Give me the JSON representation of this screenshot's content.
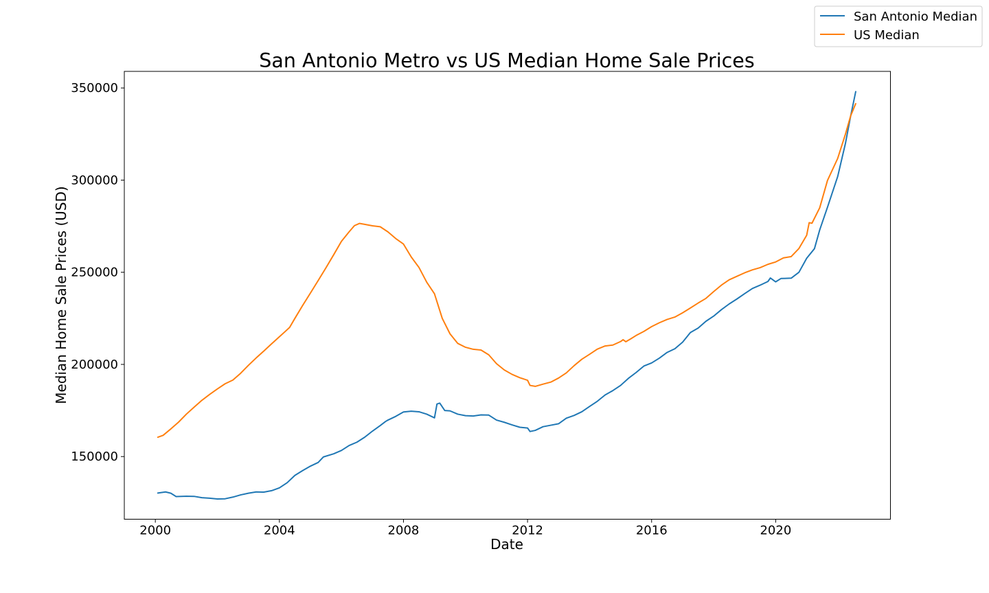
{
  "chart_data": {
    "type": "line",
    "title": "San Antonio Metro vs US Median Home Sale Prices",
    "xlabel": "Date",
    "ylabel": "Median Home Sale Prices (USD)",
    "xlim": [
      1999.0,
      2023.7
    ],
    "ylim": [
      116000,
      359000
    ],
    "xticks": [
      {
        "value": 2000,
        "label": "2000"
      },
      {
        "value": 2004,
        "label": "2004"
      },
      {
        "value": 2008,
        "label": "2008"
      },
      {
        "value": 2012,
        "label": "2012"
      },
      {
        "value": 2016,
        "label": "2016"
      },
      {
        "value": 2020,
        "label": "2020"
      }
    ],
    "yticks": [
      {
        "value": 150000,
        "label": "150000"
      },
      {
        "value": 200000,
        "label": "200000"
      },
      {
        "value": 250000,
        "label": "250000"
      },
      {
        "value": 300000,
        "label": "300000"
      },
      {
        "value": 350000,
        "label": "350000"
      }
    ],
    "legend_position": "top-right (outside plot)",
    "grid": false,
    "series": [
      {
        "name": "San Antonio Median",
        "color": "#1f77b4",
        "points": [
          [
            2000.08,
            130200
          ],
          [
            2000.33,
            130800
          ],
          [
            2000.5,
            130100
          ],
          [
            2000.67,
            128300
          ],
          [
            2001.0,
            128500
          ],
          [
            2001.25,
            128400
          ],
          [
            2001.5,
            127700
          ],
          [
            2001.75,
            127400
          ],
          [
            2002.0,
            127000
          ],
          [
            2002.25,
            127100
          ],
          [
            2002.5,
            128000
          ],
          [
            2002.75,
            129200
          ],
          [
            2003.0,
            130100
          ],
          [
            2003.25,
            130800
          ],
          [
            2003.5,
            130700
          ],
          [
            2003.75,
            131500
          ],
          [
            2004.0,
            133000
          ],
          [
            2004.25,
            135800
          ],
          [
            2004.5,
            139800
          ],
          [
            2004.75,
            142400
          ],
          [
            2005.0,
            144800
          ],
          [
            2005.25,
            146800
          ],
          [
            2005.42,
            149800
          ],
          [
            2005.75,
            151500
          ],
          [
            2006.0,
            153300
          ],
          [
            2006.25,
            156000
          ],
          [
            2006.5,
            157800
          ],
          [
            2006.75,
            160500
          ],
          [
            2007.0,
            163800
          ],
          [
            2007.25,
            166800
          ],
          [
            2007.42,
            169000
          ],
          [
            2007.5,
            169800
          ],
          [
            2007.75,
            171800
          ],
          [
            2008.0,
            174200
          ],
          [
            2008.25,
            174600
          ],
          [
            2008.5,
            174300
          ],
          [
            2008.75,
            173000
          ],
          [
            2009.0,
            171000
          ],
          [
            2009.08,
            178500
          ],
          [
            2009.17,
            179000
          ],
          [
            2009.33,
            175000
          ],
          [
            2009.5,
            174800
          ],
          [
            2009.75,
            173000
          ],
          [
            2010.0,
            172200
          ],
          [
            2010.25,
            172000
          ],
          [
            2010.5,
            172600
          ],
          [
            2010.75,
            172500
          ],
          [
            2011.0,
            169800
          ],
          [
            2011.25,
            168600
          ],
          [
            2011.5,
            167200
          ],
          [
            2011.75,
            165900
          ],
          [
            2012.0,
            165500
          ],
          [
            2012.08,
            163600
          ],
          [
            2012.25,
            164200
          ],
          [
            2012.5,
            166200
          ],
          [
            2012.75,
            167000
          ],
          [
            2013.0,
            167800
          ],
          [
            2013.25,
            170800
          ],
          [
            2013.5,
            172300
          ],
          [
            2013.75,
            174300
          ],
          [
            2014.0,
            177200
          ],
          [
            2014.25,
            180000
          ],
          [
            2014.5,
            183400
          ],
          [
            2014.75,
            185800
          ],
          [
            2015.0,
            188600
          ],
          [
            2015.25,
            192400
          ],
          [
            2015.5,
            195600
          ],
          [
            2015.75,
            199100
          ],
          [
            2016.0,
            200800
          ],
          [
            2016.25,
            203400
          ],
          [
            2016.5,
            206500
          ],
          [
            2016.75,
            208500
          ],
          [
            2017.0,
            212100
          ],
          [
            2017.25,
            217300
          ],
          [
            2017.5,
            219700
          ],
          [
            2017.75,
            223400
          ],
          [
            2018.0,
            226200
          ],
          [
            2018.25,
            229700
          ],
          [
            2018.5,
            232800
          ],
          [
            2018.75,
            235500
          ],
          [
            2019.0,
            238400
          ],
          [
            2019.25,
            241200
          ],
          [
            2019.5,
            243000
          ],
          [
            2019.75,
            245000
          ],
          [
            2019.83,
            246900
          ],
          [
            2020.0,
            244800
          ],
          [
            2020.17,
            246600
          ],
          [
            2020.5,
            246800
          ],
          [
            2020.75,
            250000
          ],
          [
            2021.0,
            257600
          ],
          [
            2021.25,
            262800
          ],
          [
            2021.42,
            273000
          ],
          [
            2021.67,
            285300
          ],
          [
            2022.0,
            302000
          ],
          [
            2022.25,
            320000
          ],
          [
            2022.42,
            335000
          ],
          [
            2022.58,
            348000
          ]
        ]
      },
      {
        "name": "US Median",
        "color": "#ff7f0e",
        "points": [
          [
            2000.08,
            160500
          ],
          [
            2000.25,
            161500
          ],
          [
            2000.5,
            165000
          ],
          [
            2000.75,
            168700
          ],
          [
            2001.0,
            173000
          ],
          [
            2001.25,
            176800
          ],
          [
            2001.5,
            180500
          ],
          [
            2001.75,
            183700
          ],
          [
            2002.0,
            186700
          ],
          [
            2002.25,
            189500
          ],
          [
            2002.5,
            191500
          ],
          [
            2002.75,
            195200
          ],
          [
            2003.0,
            199500
          ],
          [
            2003.25,
            203500
          ],
          [
            2003.5,
            207300
          ],
          [
            2003.75,
            211200
          ],
          [
            2004.0,
            215000
          ],
          [
            2004.17,
            217600
          ],
          [
            2004.33,
            220100
          ],
          [
            2004.5,
            225000
          ],
          [
            2004.75,
            232000
          ],
          [
            2005.0,
            238700
          ],
          [
            2005.25,
            245500
          ],
          [
            2005.5,
            252400
          ],
          [
            2005.75,
            259500
          ],
          [
            2006.0,
            266800
          ],
          [
            2006.25,
            272000
          ],
          [
            2006.42,
            275300
          ],
          [
            2006.58,
            276500
          ],
          [
            2006.75,
            276000
          ],
          [
            2007.0,
            275200
          ],
          [
            2007.25,
            274700
          ],
          [
            2007.5,
            271900
          ],
          [
            2007.75,
            268300
          ],
          [
            2008.0,
            265300
          ],
          [
            2008.25,
            258300
          ],
          [
            2008.5,
            252600
          ],
          [
            2008.75,
            244600
          ],
          [
            2009.0,
            238300
          ],
          [
            2009.25,
            225000
          ],
          [
            2009.5,
            216600
          ],
          [
            2009.75,
            211400
          ],
          [
            2010.0,
            209300
          ],
          [
            2010.25,
            208200
          ],
          [
            2010.5,
            207800
          ],
          [
            2010.75,
            205200
          ],
          [
            2011.0,
            200400
          ],
          [
            2011.25,
            197000
          ],
          [
            2011.5,
            194600
          ],
          [
            2011.75,
            192800
          ],
          [
            2012.0,
            191400
          ],
          [
            2012.08,
            188600
          ],
          [
            2012.25,
            188100
          ],
          [
            2012.5,
            189300
          ],
          [
            2012.75,
            190400
          ],
          [
            2013.0,
            192600
          ],
          [
            2013.25,
            195400
          ],
          [
            2013.5,
            199300
          ],
          [
            2013.75,
            202800
          ],
          [
            2014.0,
            205500
          ],
          [
            2014.25,
            208300
          ],
          [
            2014.5,
            210000
          ],
          [
            2014.75,
            210500
          ],
          [
            2015.0,
            212400
          ],
          [
            2015.08,
            213400
          ],
          [
            2015.17,
            212300
          ],
          [
            2015.33,
            213900
          ],
          [
            2015.5,
            215700
          ],
          [
            2015.75,
            217900
          ],
          [
            2016.0,
            220500
          ],
          [
            2016.25,
            222600
          ],
          [
            2016.5,
            224400
          ],
          [
            2016.75,
            225700
          ],
          [
            2017.0,
            228000
          ],
          [
            2017.25,
            230600
          ],
          [
            2017.5,
            233300
          ],
          [
            2017.75,
            235800
          ],
          [
            2018.0,
            239500
          ],
          [
            2018.25,
            243000
          ],
          [
            2018.5,
            245900
          ],
          [
            2018.75,
            247800
          ],
          [
            2019.0,
            249700
          ],
          [
            2019.25,
            251300
          ],
          [
            2019.5,
            252500
          ],
          [
            2019.75,
            254300
          ],
          [
            2020.0,
            255600
          ],
          [
            2020.25,
            257800
          ],
          [
            2020.5,
            258500
          ],
          [
            2020.75,
            262900
          ],
          [
            2021.0,
            270100
          ],
          [
            2021.08,
            276900
          ],
          [
            2021.17,
            276600
          ],
          [
            2021.42,
            285000
          ],
          [
            2021.67,
            299800
          ],
          [
            2022.0,
            311800
          ],
          [
            2022.25,
            325000
          ],
          [
            2022.42,
            335000
          ],
          [
            2022.58,
            341500
          ]
        ]
      }
    ]
  }
}
